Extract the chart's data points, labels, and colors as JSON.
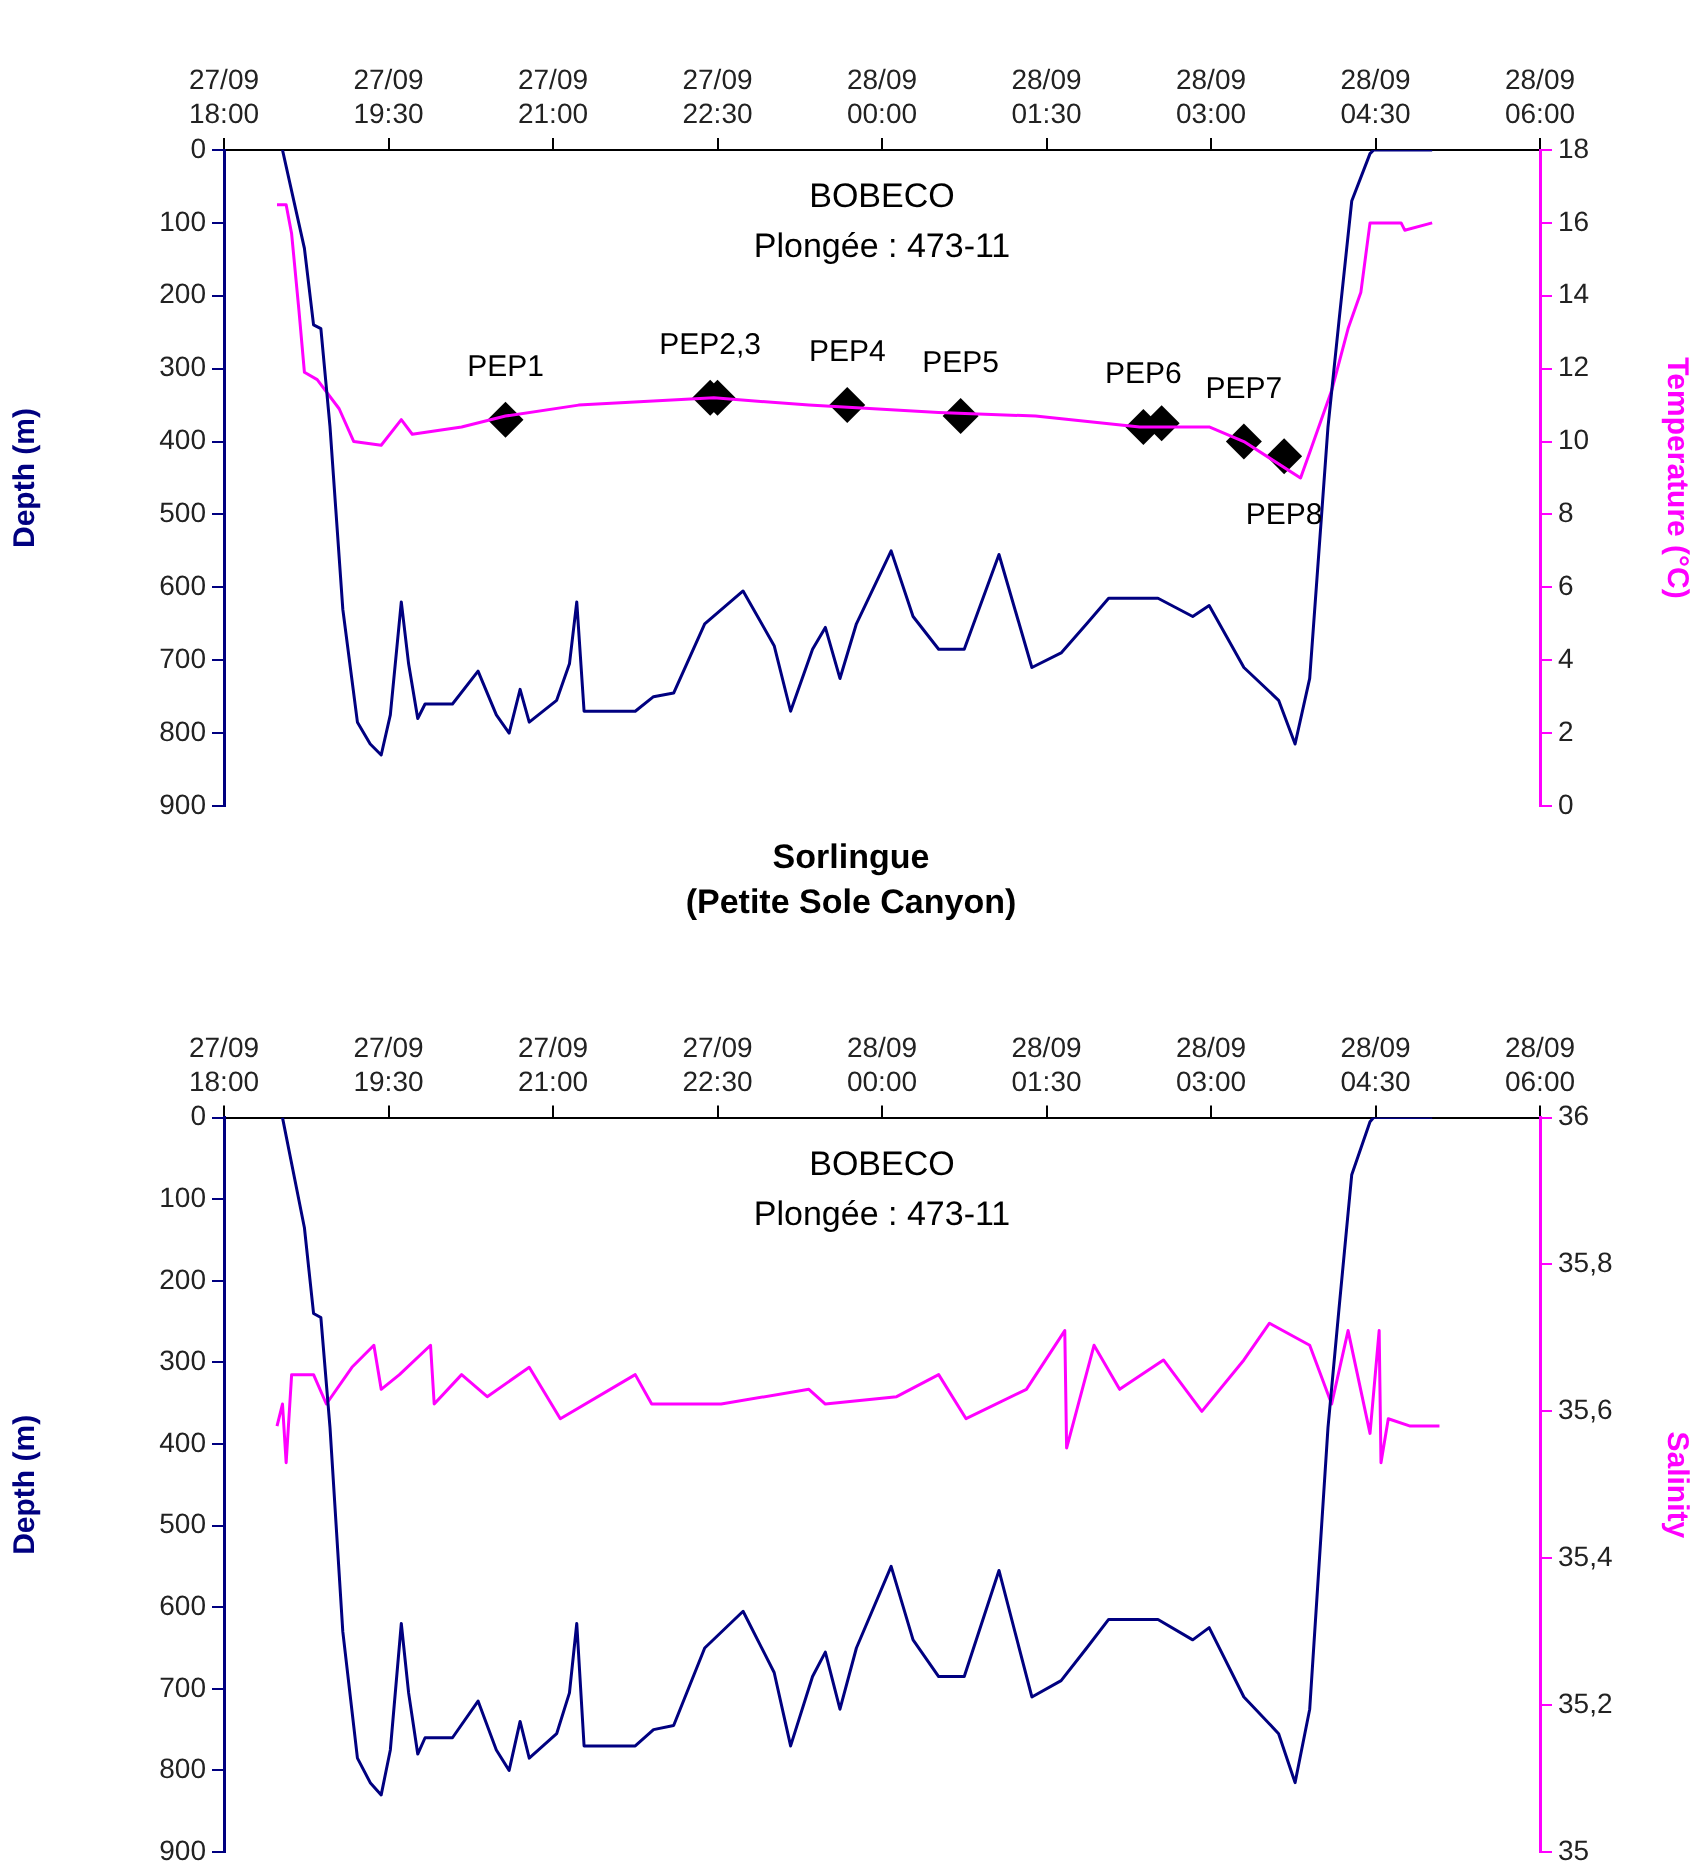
{
  "chart_data": [
    {
      "type": "line",
      "ylabel": "Depth (m)",
      "y2label": "Temperature (°C)",
      "xlim": [
        "--09-27T18:00",
        "--09-28T06:00"
      ],
      "xticks": [
        {
          "value": "--09-27T18:00",
          "label": "27/09 18:00"
        },
        {
          "value": "--09-27T19:30",
          "label": "27/09 19:30"
        },
        {
          "value": "--09-27T21:00",
          "label": "27/09 21:00"
        },
        {
          "value": "--09-27T22:30",
          "label": "27/09 22:30"
        },
        {
          "value": "--09-28T00:00",
          "label": "28/09 00:00"
        },
        {
          "value": "--09-28T01:30",
          "label": "28/09 01:30"
        },
        {
          "value": "--09-28T03:00",
          "label": "28/09 03:00"
        },
        {
          "value": "--09-28T04:30",
          "label": "28/09 04:30"
        },
        {
          "value": "--09-28T06:00",
          "label": "28/09 06:00"
        }
      ],
      "ylim": [
        900,
        0
      ],
      "yticks": [
        0,
        100,
        200,
        300,
        400,
        500,
        600,
        700,
        800,
        900
      ],
      "y2lim": [
        0,
        18
      ],
      "y2ticks": [
        0,
        2,
        4,
        6,
        8,
        10,
        12,
        14,
        16,
        18
      ],
      "grid": false,
      "legend": false,
      "marker": "none",
      "line_style": "solid",
      "series": [
        {
          "color": "#000080",
          "x": [
            "--09-27T18:32",
            "--09-27T18:44",
            "--09-27T18:49",
            "--09-27T18:53",
            "--09-27T18:58",
            "--09-27T19:05",
            "--09-27T19:13",
            "--09-27T19:20",
            "--09-27T19:26",
            "--09-27T19:31",
            "--09-27T19:37",
            "--09-27T19:41",
            "--09-27T19:46",
            "--09-27T19:50",
            "--09-27T20:05",
            "--09-27T20:19",
            "--09-27T20:29",
            "--09-27T20:36",
            "--09-27T20:42",
            "--09-27T20:47",
            "--09-27T21:02",
            "--09-27T21:09",
            "--09-27T21:13",
            "--09-27T21:17",
            "--09-27T21:45",
            "--09-27T21:55",
            "--09-27T22:06",
            "--09-27T22:23",
            "--09-27T22:44",
            "--09-27T23:01",
            "--09-27T23:10",
            "--09-27T23:22",
            "--09-27T23:29",
            "--09-27T23:37",
            "--09-27T23:46",
            "--09-28T00:05",
            "--09-28T00:17",
            "--09-28T00:31",
            "--09-28T00:45",
            "--09-28T01:04",
            "--09-28T01:22",
            "--09-28T01:38",
            "--09-28T01:52",
            "--09-28T02:04",
            "--09-28T02:31",
            "--09-28T02:50",
            "--09-28T02:59",
            "--09-28T03:18",
            "--09-28T03:37",
            "--09-28T03:46",
            "--09-28T03:54",
            "--09-28T04:04",
            "--09-28T04:10",
            "--09-28T04:17",
            "--09-28T04:27",
            "--09-28T04:29",
            "--09-28T05:01"
          ],
          "values": [
            0,
            135,
            240,
            245,
            380,
            630,
            785,
            815,
            830,
            775,
            620,
            705,
            780,
            760,
            760,
            715,
            775,
            800,
            740,
            785,
            755,
            705,
            620,
            770,
            770,
            750,
            745,
            650,
            605,
            680,
            770,
            685,
            655,
            725,
            650,
            550,
            640,
            685,
            685,
            555,
            710,
            690,
            650,
            615,
            615,
            640,
            625,
            710,
            755,
            815,
            725,
            380,
            235,
            70,
            5,
            0,
            0
          ]
        },
        {
          "color": "#ff00ff",
          "axis": "y2",
          "x": [
            "--09-27T18:29",
            "--09-27T18:34",
            "--09-27T18:37",
            "--09-27T18:41",
            "--09-27T18:44",
            "--09-27T18:51",
            "--09-27T19:03",
            "--09-27T19:11",
            "--09-27T19:26",
            "--09-27T19:37",
            "--09-27T19:43",
            "--09-27T20:10",
            "--09-27T20:34",
            "--09-27T21:14",
            "--09-27T22:28",
            "--09-27T23:20",
            "--09-28T00:31",
            "--09-28T01:24",
            "--09-28T02:21",
            "--09-28T02:59",
            "--09-28T03:18",
            "--09-28T03:49",
            "--09-28T03:54",
            "--09-28T04:06",
            "--09-28T04:15",
            "--09-28T04:22",
            "--09-28T04:27",
            "--09-28T04:44",
            "--09-28T04:46",
            "--09-28T05:01"
          ],
          "values": [
            16.5,
            16.5,
            15.7,
            13.6,
            11.9,
            11.7,
            10.9,
            10,
            9.9,
            10.6,
            10.2,
            10.4,
            10.7,
            11,
            11.2,
            11,
            10.8,
            10.7,
            10.4,
            10.4,
            10,
            9,
            9.7,
            11.4,
            13.1,
            14.1,
            16,
            16,
            15.8,
            16
          ]
        },
        {
          "type": "scatter",
          "marker": "diamond",
          "axis": "y2",
          "color": "#000000",
          "x": [
            "--09-27T20:34",
            "--09-27T22:26",
            "--09-27T22:30",
            "--09-27T23:41",
            "--09-28T00:43",
            "--09-28T02:23",
            "--09-28T02:33",
            "--09-28T03:18",
            "--09-28T03:40"
          ],
          "values": [
            10.6,
            11.2,
            11.2,
            11,
            10.7,
            10.4,
            10.5,
            10,
            9.6
          ],
          "value_labels": [
            "PEP1",
            "PEP2,3",
            null,
            "PEP4",
            "PEP5",
            "PEP6",
            null,
            "PEP7",
            "PEP8"
          ]
        }
      ],
      "annotations": [
        "BOBECO",
        "Plongée : 473-11"
      ]
    },
    {
      "type": "line",
      "title": "Sorlingue",
      "subtitle": "(Petite Sole Canyon)",
      "ylabel": "Depth (m)",
      "y2label": "Salinity",
      "xlim": [
        "--09-27T18:00",
        "--09-28T06:00"
      ],
      "xticks": [
        {
          "value": "--09-27T18:00",
          "label": "27/09 18:00"
        },
        {
          "value": "--09-27T19:30",
          "label": "27/09 19:30"
        },
        {
          "value": "--09-27T21:00",
          "label": "27/09 21:00"
        },
        {
          "value": "--09-27T22:30",
          "label": "27/09 22:30"
        },
        {
          "value": "--09-28T00:00",
          "label": "28/09 00:00"
        },
        {
          "value": "--09-28T01:30",
          "label": "28/09 01:30"
        },
        {
          "value": "--09-28T03:00",
          "label": "28/09 03:00"
        },
        {
          "value": "--09-28T04:30",
          "label": "28/09 04:30"
        },
        {
          "value": "--09-28T06:00",
          "label": "28/09 06:00"
        }
      ],
      "ylim": [
        900,
        0
      ],
      "yticks": [
        0,
        100,
        200,
        300,
        400,
        500,
        600,
        700,
        800,
        900
      ],
      "y2lim": [
        35,
        36
      ],
      "y2ticks": [
        35,
        {
          "value": 35.2,
          "label": "35,2"
        },
        {
          "value": 35.4,
          "label": "35,4"
        },
        {
          "value": 35.6,
          "label": "35,6"
        },
        {
          "value": 35.8,
          "label": "35,8"
        },
        36
      ],
      "grid": false,
      "legend": false,
      "marker": "none",
      "line_style": "solid",
      "series": [
        {
          "color": "#000080",
          "x": [
            "--09-27T18:32",
            "--09-27T18:44",
            "--09-27T18:49",
            "--09-27T18:53",
            "--09-27T18:58",
            "--09-27T19:05",
            "--09-27T19:13",
            "--09-27T19:20",
            "--09-27T19:26",
            "--09-27T19:31",
            "--09-27T19:37",
            "--09-27T19:41",
            "--09-27T19:46",
            "--09-27T19:50",
            "--09-27T20:05",
            "--09-27T20:19",
            "--09-27T20:29",
            "--09-27T20:36",
            "--09-27T20:42",
            "--09-27T20:47",
            "--09-27T21:02",
            "--09-27T21:09",
            "--09-27T21:13",
            "--09-27T21:17",
            "--09-27T21:45",
            "--09-27T21:55",
            "--09-27T22:06",
            "--09-27T22:23",
            "--09-27T22:44",
            "--09-27T23:01",
            "--09-27T23:10",
            "--09-27T23:22",
            "--09-27T23:29",
            "--09-27T23:37",
            "--09-27T23:46",
            "--09-28T00:05",
            "--09-28T00:17",
            "--09-28T00:31",
            "--09-28T00:45",
            "--09-28T01:04",
            "--09-28T01:22",
            "--09-28T01:38",
            "--09-28T01:52",
            "--09-28T02:04",
            "--09-28T02:31",
            "--09-28T02:50",
            "--09-28T02:59",
            "--09-28T03:18",
            "--09-28T03:37",
            "--09-28T03:46",
            "--09-28T03:54",
            "--09-28T04:04",
            "--09-28T04:10",
            "--09-28T04:17",
            "--09-28T04:27",
            "--09-28T04:29",
            "--09-28T05:01"
          ],
          "values": [
            0,
            135,
            240,
            245,
            380,
            630,
            785,
            815,
            830,
            775,
            620,
            705,
            780,
            760,
            760,
            715,
            775,
            800,
            740,
            785,
            755,
            705,
            620,
            770,
            770,
            750,
            745,
            650,
            605,
            680,
            770,
            685,
            655,
            725,
            650,
            550,
            640,
            685,
            685,
            555,
            710,
            690,
            650,
            615,
            615,
            640,
            625,
            710,
            755,
            815,
            725,
            380,
            235,
            70,
            5,
            0,
            0
          ]
        },
        {
          "color": "#ff00ff",
          "axis": "y2",
          "x": [
            "--09-27T18:29",
            "--09-27T18:32",
            "--09-27T18:34",
            "--09-27T18:37",
            "--09-27T18:49",
            "--09-27T18:56",
            "--09-27T19:10",
            "--09-27T19:22",
            "--09-27T19:26",
            "--09-27T19:36",
            "--09-27T19:53",
            "--09-27T19:55",
            "--09-27T20:10",
            "--09-27T20:24",
            "--09-27T20:47",
            "--09-27T21:04",
            "--09-27T21:45",
            "--09-27T21:54",
            "--09-27T22:32",
            "--09-27T23:20",
            "--09-27T23:29",
            "--09-28T00:08",
            "--09-28T00:31",
            "--09-28T00:46",
            "--09-28T01:19",
            "--09-28T01:40",
            "--09-28T01:41",
            "--09-28T01:56",
            "--09-28T02:10",
            "--09-28T02:34",
            "--09-28T02:55",
            "--09-28T03:18",
            "--09-28T03:32",
            "--09-28T03:54",
            "--09-28T04:06",
            "--09-28T04:15",
            "--09-28T04:27",
            "--09-28T04:32",
            "--09-28T04:33",
            "--09-28T04:37",
            "--09-28T04:49",
            "--09-28T05:05"
          ],
          "values": [
            35.58,
            35.61,
            35.53,
            35.65,
            35.65,
            35.61,
            35.66,
            35.69,
            35.63,
            35.65,
            35.69,
            35.61,
            35.65,
            35.62,
            35.66,
            35.59,
            35.65,
            35.61,
            35.61,
            35.63,
            35.61,
            35.62,
            35.65,
            35.59,
            35.63,
            35.71,
            35.55,
            35.69,
            35.63,
            35.67,
            35.6,
            35.67,
            35.72,
            35.69,
            35.61,
            35.71,
            35.57,
            35.71,
            35.53,
            35.59,
            35.58,
            35.58
          ]
        }
      ],
      "annotations": [
        "BOBECO",
        "Plongée : 473-11"
      ]
    }
  ]
}
